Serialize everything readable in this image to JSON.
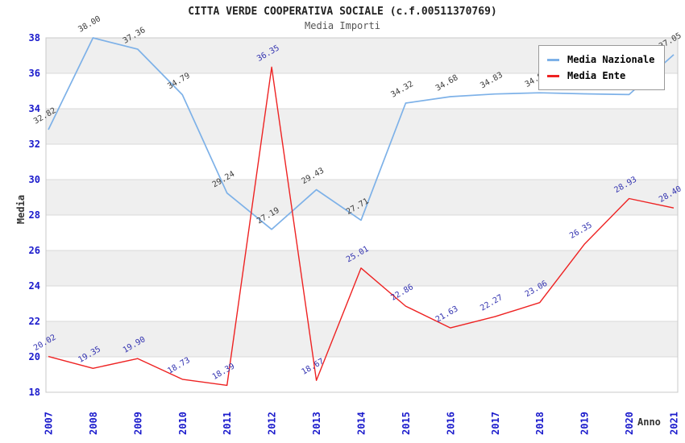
{
  "header": {
    "title": "CITTA VERDE COOPERATIVA SOCIALE (c.f.00511370769)",
    "subtitle": "Media Importi"
  },
  "chart_data": {
    "type": "line",
    "title": "CITTA VERDE COOPERATIVA SOCIALE (c.f.00511370769)",
    "subtitle": "Media Importi",
    "xlabel": "Anno",
    "ylabel": "Media",
    "x": [
      2007,
      2008,
      2009,
      2010,
      2011,
      2012,
      2013,
      2014,
      2015,
      2016,
      2017,
      2018,
      2019,
      2020,
      2021
    ],
    "series": [
      {
        "name": "Media Nazionale",
        "color": "#7db1e8",
        "label_color": "#3c3c3c",
        "values": [
          32.82,
          38.0,
          37.36,
          34.79,
          29.24,
          27.19,
          29.43,
          27.71,
          34.32,
          34.68,
          34.83,
          34.9,
          34.84,
          34.8,
          37.05
        ]
      },
      {
        "name": "Media Ente",
        "color": "#ee2222",
        "label_color": "#3333b0",
        "values": [
          20.02,
          19.35,
          19.9,
          18.73,
          18.39,
          36.35,
          18.67,
          25.01,
          22.86,
          21.63,
          22.27,
          23.06,
          26.35,
          28.93,
          28.4
        ]
      }
    ],
    "ylim": [
      18,
      38
    ],
    "ytick_step": 2,
    "yticks": [
      18,
      20,
      22,
      24,
      26,
      28,
      30,
      32,
      34,
      36,
      38
    ],
    "grid": "horizontal-bands",
    "band_color": "#efefef",
    "gridline_color": "#dadada",
    "plot_border_color": "#c8c8c8",
    "tick_label_color": "#1a1acc",
    "legend_position": "top-right",
    "label_format": "two-decimals"
  },
  "legend": {
    "items": [
      {
        "label": "Media Nazionale",
        "color": "#7db1e8"
      },
      {
        "label": "Media Ente",
        "color": "#ee2222"
      }
    ]
  }
}
